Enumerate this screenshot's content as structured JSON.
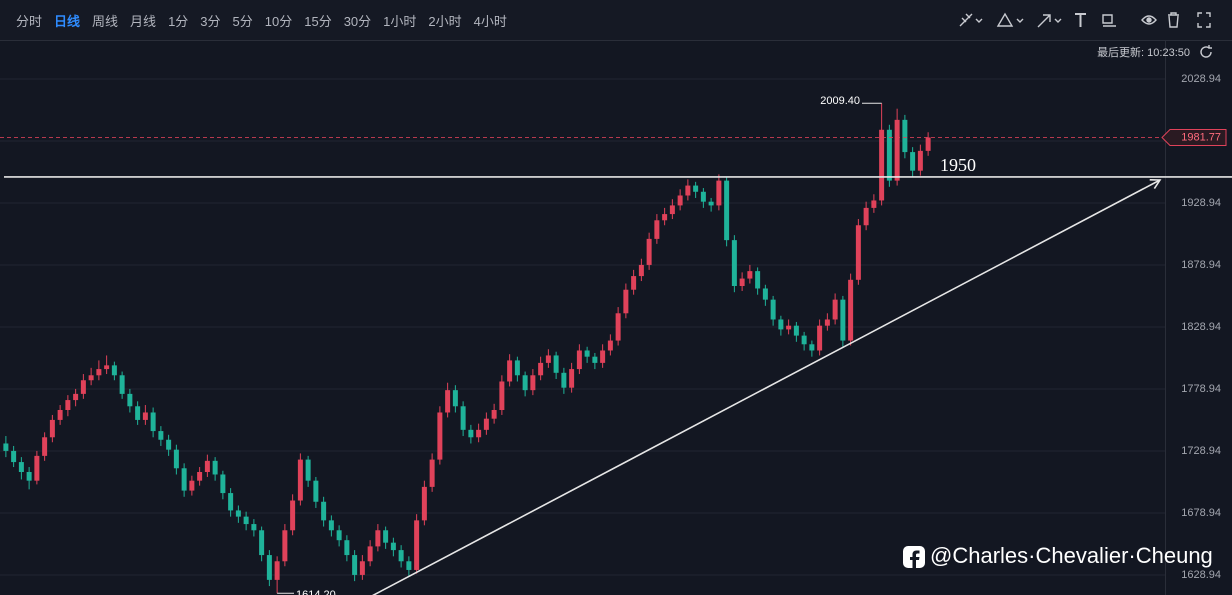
{
  "toolbar": {
    "intervals": [
      "分时",
      "日线",
      "周线",
      "月线",
      "1分",
      "3分",
      "5分",
      "10分",
      "15分",
      "30分",
      "1小时",
      "2小时",
      "4小时"
    ],
    "active_index": 1
  },
  "last_update": "最后更新: 10:23:50",
  "watermark": "@Charles·Chevalier·Cheung",
  "chart_data": {
    "type": "candlestick",
    "up_color": "#e0425a",
    "down_color": "#1fb39a",
    "ylim": [
      1612.8,
      2060.4
    ],
    "yticks": [
      1628.94,
      1678.94,
      1728.94,
      1778.94,
      1828.94,
      1878.94,
      1928.94,
      1978.94,
      2028.94
    ],
    "grid": true,
    "last_price": {
      "value": 1981.77,
      "label": "1981.77"
    },
    "high_label": {
      "value": 2009.4,
      "label": "2009.40"
    },
    "low_label": {
      "value": 1614.2,
      "label": "1614.20"
    },
    "hline": 1950,
    "ohlc": [
      [
        1735,
        1741,
        1724,
        1729
      ],
      [
        1729,
        1733,
        1716,
        1720
      ],
      [
        1720,
        1724,
        1706,
        1712
      ],
      [
        1712,
        1716,
        1698,
        1705
      ],
      [
        1705,
        1729,
        1702,
        1725
      ],
      [
        1725,
        1744,
        1721,
        1740
      ],
      [
        1740,
        1758,
        1736,
        1754
      ],
      [
        1754,
        1766,
        1750,
        1762
      ],
      [
        1762,
        1774,
        1757,
        1770
      ],
      [
        1770,
        1779,
        1765,
        1775
      ],
      [
        1775,
        1791,
        1771,
        1786
      ],
      [
        1786,
        1796,
        1782,
        1790
      ],
      [
        1790,
        1802,
        1786,
        1795
      ],
      [
        1795,
        1806,
        1791,
        1798
      ],
      [
        1798,
        1801,
        1786,
        1790
      ],
      [
        1790,
        1793,
        1771,
        1775
      ],
      [
        1775,
        1779,
        1760,
        1765
      ],
      [
        1765,
        1769,
        1750,
        1754
      ],
      [
        1754,
        1766,
        1750,
        1760
      ],
      [
        1760,
        1764,
        1740,
        1745
      ],
      [
        1745,
        1749,
        1733,
        1738
      ],
      [
        1738,
        1742,
        1725,
        1730
      ],
      [
        1730,
        1734,
        1710,
        1715
      ],
      [
        1715,
        1719,
        1692,
        1697
      ],
      [
        1697,
        1709,
        1693,
        1705
      ],
      [
        1705,
        1716,
        1701,
        1712
      ],
      [
        1712,
        1726,
        1708,
        1721
      ],
      [
        1721,
        1724,
        1705,
        1710
      ],
      [
        1710,
        1713,
        1690,
        1695
      ],
      [
        1695,
        1699,
        1676,
        1681
      ],
      [
        1681,
        1685,
        1671,
        1676
      ],
      [
        1676,
        1680,
        1665,
        1670
      ],
      [
        1670,
        1674,
        1660,
        1665
      ],
      [
        1665,
        1668,
        1640,
        1645
      ],
      [
        1645,
        1649,
        1620,
        1625
      ],
      [
        1625,
        1644,
        1614.2,
        1640
      ],
      [
        1640,
        1670,
        1636,
        1665
      ],
      [
        1665,
        1694,
        1661,
        1689
      ],
      [
        1689,
        1727,
        1685,
        1722
      ],
      [
        1722,
        1725,
        1700,
        1705
      ],
      [
        1705,
        1708,
        1683,
        1688
      ],
      [
        1688,
        1692,
        1668,
        1673
      ],
      [
        1673,
        1677,
        1660,
        1665
      ],
      [
        1665,
        1669,
        1652,
        1657
      ],
      [
        1657,
        1661,
        1640,
        1645
      ],
      [
        1645,
        1649,
        1624,
        1629
      ],
      [
        1629,
        1645,
        1625,
        1640
      ],
      [
        1640,
        1657,
        1636,
        1652
      ],
      [
        1652,
        1670,
        1648,
        1665
      ],
      [
        1665,
        1668,
        1650,
        1655
      ],
      [
        1655,
        1659,
        1644,
        1649
      ],
      [
        1649,
        1653,
        1635,
        1640
      ],
      [
        1640,
        1644,
        1628,
        1633
      ],
      [
        1633,
        1678,
        1630,
        1673
      ],
      [
        1673,
        1705,
        1669,
        1700
      ],
      [
        1700,
        1727,
        1696,
        1722
      ],
      [
        1722,
        1765,
        1718,
        1760
      ],
      [
        1760,
        1784,
        1756,
        1778
      ],
      [
        1778,
        1782,
        1760,
        1765
      ],
      [
        1765,
        1769,
        1741,
        1746
      ],
      [
        1746,
        1750,
        1735,
        1740
      ],
      [
        1740,
        1751,
        1736,
        1746
      ],
      [
        1746,
        1760,
        1742,
        1755
      ],
      [
        1755,
        1767,
        1751,
        1762
      ],
      [
        1762,
        1790,
        1758,
        1785
      ],
      [
        1785,
        1807,
        1781,
        1802
      ],
      [
        1802,
        1805,
        1785,
        1790
      ],
      [
        1790,
        1793,
        1773,
        1778
      ],
      [
        1778,
        1795,
        1774,
        1790
      ],
      [
        1790,
        1805,
        1786,
        1800
      ],
      [
        1800,
        1811,
        1796,
        1806
      ],
      [
        1806,
        1809,
        1787,
        1792
      ],
      [
        1792,
        1796,
        1775,
        1780
      ],
      [
        1780,
        1800,
        1776,
        1795
      ],
      [
        1795,
        1815,
        1791,
        1810
      ],
      [
        1810,
        1813,
        1800,
        1805
      ],
      [
        1805,
        1808,
        1795,
        1800
      ],
      [
        1800,
        1815,
        1796,
        1810
      ],
      [
        1810,
        1823,
        1806,
        1818
      ],
      [
        1818,
        1845,
        1814,
        1840
      ],
      [
        1840,
        1864,
        1836,
        1859
      ],
      [
        1859,
        1875,
        1855,
        1870
      ],
      [
        1870,
        1884,
        1866,
        1879
      ],
      [
        1879,
        1905,
        1875,
        1900
      ],
      [
        1900,
        1920,
        1896,
        1915
      ],
      [
        1915,
        1925,
        1911,
        1920
      ],
      [
        1920,
        1932,
        1916,
        1927
      ],
      [
        1927,
        1940,
        1923,
        1935
      ],
      [
        1935,
        1948,
        1931,
        1943
      ],
      [
        1943,
        1946,
        1933,
        1938
      ],
      [
        1938,
        1941,
        1925,
        1930
      ],
      [
        1930,
        1933,
        1922,
        1927
      ],
      [
        1927,
        1952,
        1923,
        1947
      ],
      [
        1947,
        1950,
        1894,
        1899
      ],
      [
        1899,
        1903,
        1857,
        1862
      ],
      [
        1862,
        1873,
        1858,
        1868
      ],
      [
        1868,
        1879,
        1864,
        1874
      ],
      [
        1874,
        1877,
        1855,
        1860
      ],
      [
        1860,
        1863,
        1846,
        1851
      ],
      [
        1851,
        1854,
        1830,
        1835
      ],
      [
        1835,
        1838,
        1822,
        1827
      ],
      [
        1827,
        1835,
        1823,
        1830
      ],
      [
        1830,
        1833,
        1817,
        1822
      ],
      [
        1822,
        1825,
        1810,
        1815
      ],
      [
        1815,
        1818,
        1805,
        1810
      ],
      [
        1810,
        1835,
        1806,
        1830
      ],
      [
        1830,
        1840,
        1826,
        1835
      ],
      [
        1835,
        1856,
        1831,
        1851
      ],
      [
        1851,
        1854,
        1813,
        1818
      ],
      [
        1818,
        1872,
        1814,
        1867
      ],
      [
        1867,
        1916,
        1863,
        1911
      ],
      [
        1911,
        1930,
        1907,
        1925
      ],
      [
        1925,
        1936,
        1921,
        1931
      ],
      [
        1931,
        2009.4,
        1927,
        1988
      ],
      [
        1988,
        1992,
        1942,
        1947
      ],
      [
        1947,
        2005,
        1943,
        1996
      ],
      [
        1996,
        2000,
        1965,
        1970
      ],
      [
        1970,
        1974,
        1950,
        1955
      ],
      [
        1955,
        1976,
        1951,
        1971
      ],
      [
        1971,
        1986,
        1967,
        1981.77
      ]
    ]
  }
}
